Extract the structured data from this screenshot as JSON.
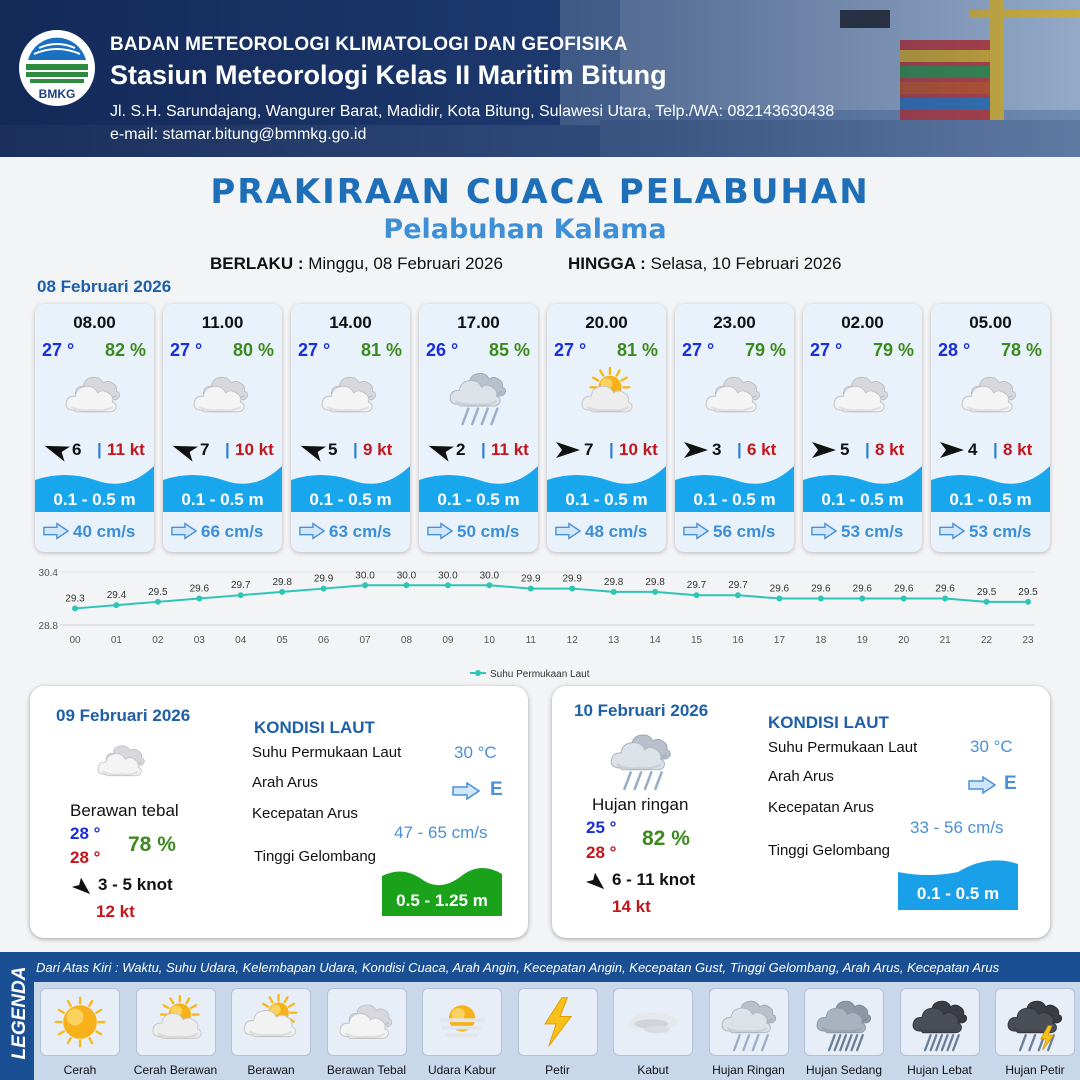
{
  "header": {
    "logo_text": "BMKG",
    "org": "BADAN METEOROLOGI KLIMATOLOGI DAN GEOFISIKA",
    "station": "Stasiun Meteorologi Kelas II Maritim Bitung",
    "address": "Jl. S.H. Sarundajang, Wangurer Barat, Madidir, Kota Bitung, Sulawesi Utara, Telp./WA: 082143630438",
    "email": "e-mail: stamar.bitung@bmmkg.go.id"
  },
  "title": "PRAKIRAAN CUACA PELABUHAN",
  "subtitle": "Pelabuhan Kalama",
  "validity": {
    "from_label": "BERLAKU :",
    "from": "Minggu, 08 Februari 2026",
    "to_label": "HINGGA :",
    "to": "Selasa, 10 Februari 2026"
  },
  "day1_label": "08 Februari 2026",
  "cards": [
    {
      "time": "08.00",
      "temp": "27 °",
      "hum": "82 %",
      "icon": "berawan-tebal",
      "wind_dir": "nw",
      "wind": "6",
      "gust": "11 kt",
      "wave": "0.1 - 0.5 m",
      "current": "40 cm/s"
    },
    {
      "time": "11.00",
      "temp": "27 °",
      "hum": "80 %",
      "icon": "berawan-tebal",
      "wind_dir": "nw",
      "wind": "7",
      "gust": "10 kt",
      "wave": "0.1 - 0.5 m",
      "current": "66 cm/s"
    },
    {
      "time": "14.00",
      "temp": "27 °",
      "hum": "81 %",
      "icon": "berawan-tebal",
      "wind_dir": "nw",
      "wind": "5",
      "gust": "9 kt",
      "wave": "0.1 - 0.5 m",
      "current": "63 cm/s"
    },
    {
      "time": "17.00",
      "temp": "26 °",
      "hum": "85 %",
      "icon": "hujan-ringan",
      "wind_dir": "nw",
      "wind": "2",
      "gust": "11 kt",
      "wave": "0.1 - 0.5 m",
      "current": "50 cm/s"
    },
    {
      "time": "20.00",
      "temp": "27 °",
      "hum": "81 %",
      "icon": "cerah-berawan",
      "wind_dir": "e",
      "wind": "7",
      "gust": "10 kt",
      "wave": "0.1 - 0.5 m",
      "current": "48 cm/s"
    },
    {
      "time": "23.00",
      "temp": "27 °",
      "hum": "79 %",
      "icon": "berawan-tebal",
      "wind_dir": "e",
      "wind": "3",
      "gust": "6 kt",
      "wave": "0.1 - 0.5 m",
      "current": "56 cm/s"
    },
    {
      "time": "02.00",
      "temp": "27 °",
      "hum": "79 %",
      "icon": "berawan-tebal",
      "wind_dir": "e",
      "wind": "5",
      "gust": "8 kt",
      "wave": "0.1 - 0.5 m",
      "current": "53 cm/s"
    },
    {
      "time": "05.00",
      "temp": "28 °",
      "hum": "78 %",
      "icon": "berawan-tebal",
      "wind_dir": "e",
      "wind": "4",
      "gust": "8 kt",
      "wave": "0.1 - 0.5 m",
      "current": "53 cm/s"
    }
  ],
  "chart_data": {
    "type": "line",
    "x": [
      "00",
      "01",
      "02",
      "03",
      "04",
      "05",
      "06",
      "07",
      "08",
      "09",
      "10",
      "11",
      "12",
      "13",
      "14",
      "15",
      "16",
      "17",
      "18",
      "19",
      "20",
      "21",
      "22",
      "23"
    ],
    "series": [
      {
        "name": "Suhu Permukaan Laut",
        "values": [
          29.3,
          29.4,
          29.5,
          29.6,
          29.7,
          29.8,
          29.9,
          30.0,
          30.0,
          30.0,
          30.0,
          29.9,
          29.9,
          29.8,
          29.8,
          29.7,
          29.7,
          29.6,
          29.6,
          29.6,
          29.6,
          29.6,
          29.5,
          29.5
        ]
      }
    ],
    "ylim": [
      28.8,
      30.4
    ],
    "yticks": [
      "30.4",
      "28.8"
    ],
    "color": "#2ec4b6",
    "legend": "bottom"
  },
  "day2": {
    "date": "09 Februari 2026",
    "condition": "Berawan tebal",
    "icon": "berawan-tebal",
    "tmin": "28 °",
    "tmax": "28 °",
    "hum": "78 %",
    "wind": "3  - 5 knot",
    "gust": "12 kt",
    "kondisi_title": "KONDISI LAUT",
    "sst_label": "Suhu Permukaan Laut",
    "sst": "30 °C",
    "dir_label": "Arah Arus",
    "dir": "E",
    "speed_label": "Kecepatan Arus",
    "speed": "47 - 65 cm/s",
    "wave_label": "Tinggi Gelombang",
    "wave": "0.5 - 1.25 m",
    "wave_color": "#1aa31a"
  },
  "day3": {
    "date": "10 Februari 2026",
    "condition": "Hujan ringan",
    "icon": "hujan-ringan",
    "tmin": "25 °",
    "tmax": "28 °",
    "hum": "82 %",
    "wind": "6  - 11 knot",
    "gust": "14 kt",
    "kondisi_title": "KONDISI LAUT",
    "sst_label": "Suhu Permukaan Laut",
    "sst": "30 °C",
    "dir_label": "Arah Arus",
    "dir": "E",
    "speed_label": "Kecepatan Arus",
    "speed": "33 - 56 cm/s",
    "wave_label": "Tinggi Gelombang",
    "wave": "0.1 - 0.5 m",
    "wave_color": "#1aa0e8"
  },
  "legend": {
    "side": "LEGENDA",
    "desc": "Dari Atas Kiri : Waktu, Suhu Udara, Kelembapan Udara, Kondisi Cuaca, Arah Angin, Kecepatan Angin, Kecepatan Gust, Tinggi Gelombang, Arah Arus, Kecepatan Arus",
    "items": [
      {
        "label": "Cerah",
        "icon": "cerah"
      },
      {
        "label": "Cerah Berawan",
        "icon": "cerah-berawan"
      },
      {
        "label": "Berawan",
        "icon": "berawan"
      },
      {
        "label": "Berawan Tebal",
        "icon": "berawan-tebal"
      },
      {
        "label": "Udara Kabur",
        "icon": "udara-kabur"
      },
      {
        "label": "Petir",
        "icon": "petir"
      },
      {
        "label": "Kabut",
        "icon": "kabut"
      },
      {
        "label": "Hujan Ringan",
        "icon": "hujan-ringan"
      },
      {
        "label": "Hujan Sedang",
        "icon": "hujan-sedang"
      },
      {
        "label": "Hujan Lebat",
        "icon": "hujan-lebat"
      },
      {
        "label": "Hujan Petir",
        "icon": "hujan-petir"
      }
    ]
  }
}
